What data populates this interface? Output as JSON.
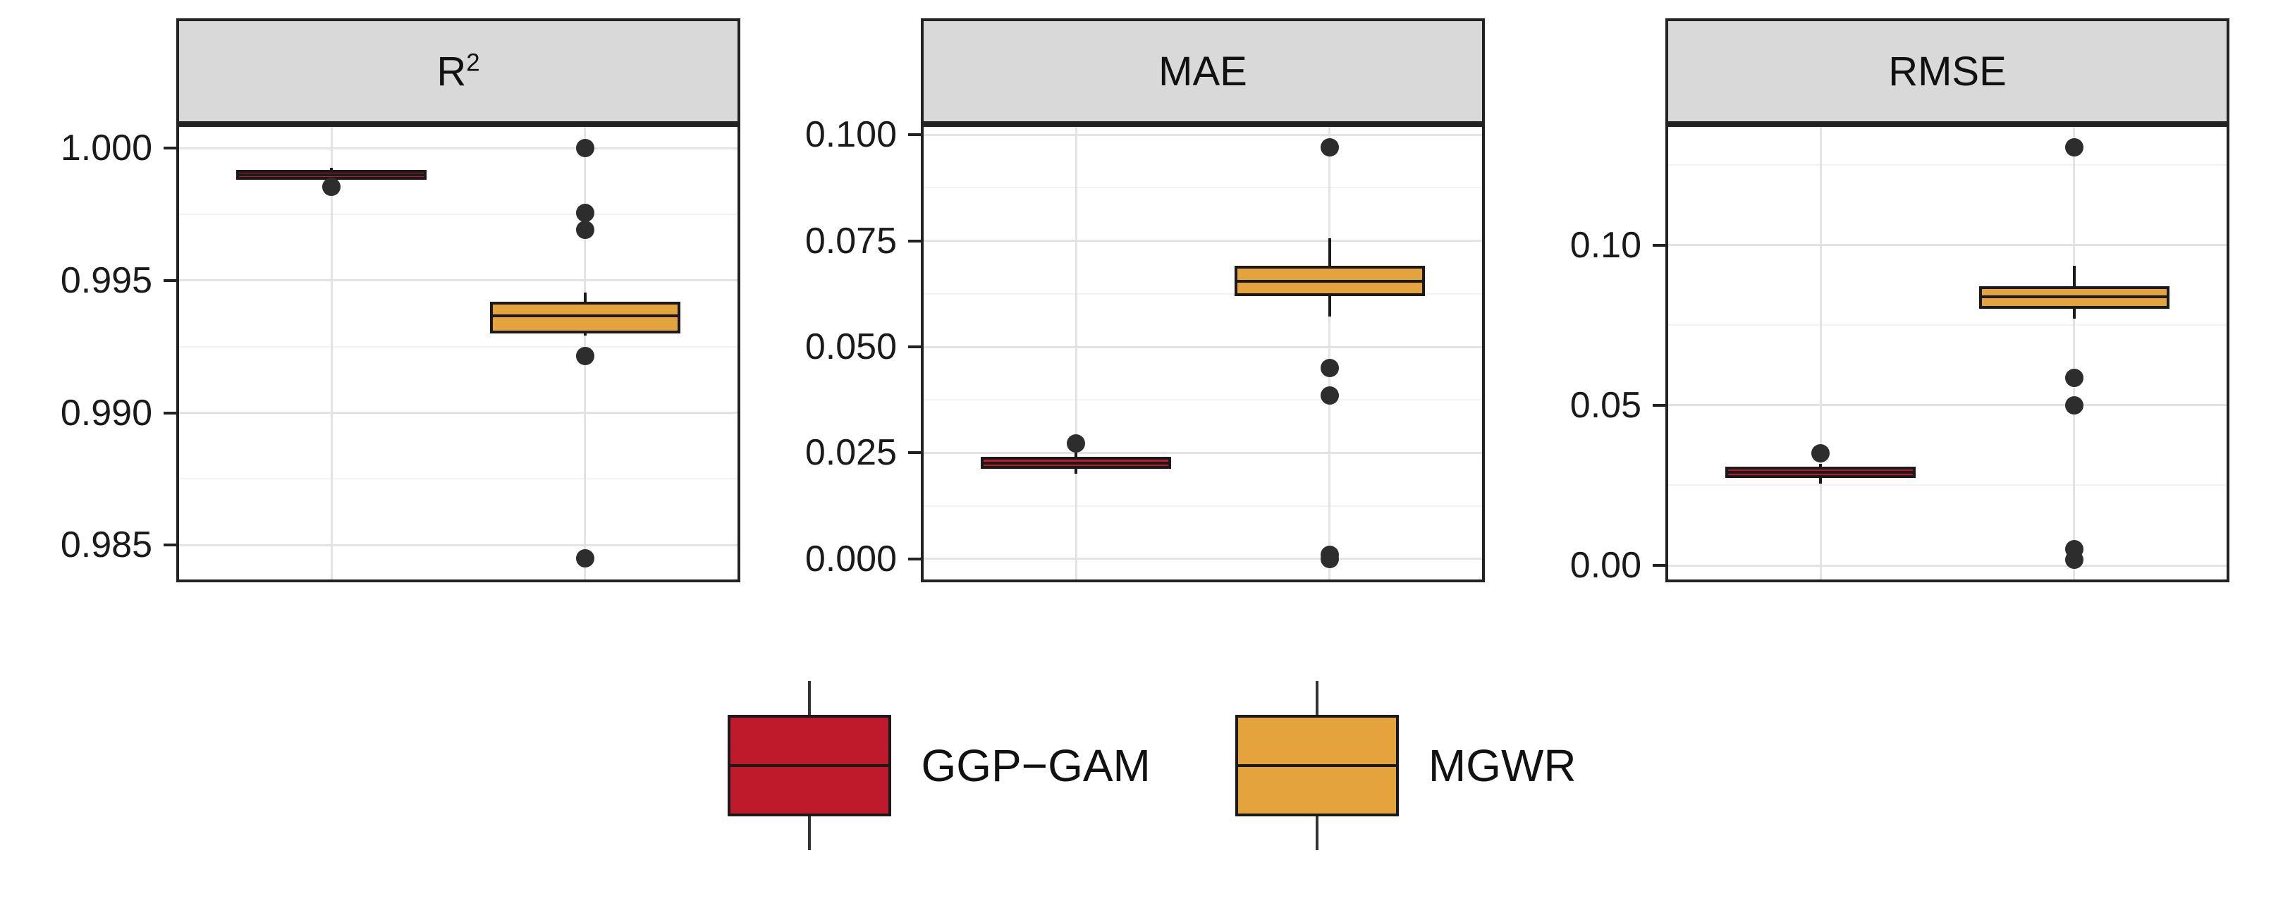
{
  "legend": {
    "position": "bottom",
    "items": [
      {
        "label": "GGP−GAM",
        "color_key": "ggp_gam"
      },
      {
        "label": "MGWR",
        "color_key": "mgwr"
      }
    ]
  },
  "colors": {
    "ggp_gam": "#bf1a2b",
    "mgwr": "#e4a33c",
    "stroke": "#1a1a1a",
    "outlier_point": "#2d2d2d",
    "strip_background": "#d9d9d9",
    "panel_border": "#222222",
    "grid_major": "#e3e3e3",
    "grid_minor": "#f2f2f2"
  },
  "chart_data": {
    "type": "boxplot",
    "title": "",
    "xlabel": "",
    "ylabel": "",
    "legend_position": "bottom",
    "grid": "major and minor horizontal gridlines, vertical major gridlines at each category",
    "x_categories": [
      "GGP-GAM",
      "MGWR"
    ],
    "facets": [
      {
        "id": "r2",
        "title": "R",
        "title_sup": "2",
        "y_domain": [
          0.9837,
          1.0008
        ],
        "ticks": [
          {
            "value": 1.0,
            "label": "1.000"
          },
          {
            "value": 0.995,
            "label": "0.995"
          },
          {
            "value": 0.99,
            "label": "0.990"
          },
          {
            "value": 0.985,
            "label": "0.985"
          }
        ],
        "minor_ticks": [
          0.9975,
          0.9925,
          0.9875
        ],
        "boxes": [
          {
            "group": "GGP-GAM",
            "color_key": "ggp_gam",
            "x": 0.273,
            "whisker_low": 0.99872,
            "q1": 0.9988,
            "median": 0.999,
            "q3": 0.99918,
            "whisker_high": 0.99925,
            "outliers": [
              0.99855
            ]
          },
          {
            "group": "MGWR",
            "color_key": "mgwr",
            "x": 0.727,
            "whisker_low": 0.9929,
            "q1": 0.993,
            "median": 0.99365,
            "q3": 0.9942,
            "whisker_high": 0.99455,
            "outliers": [
              1.0,
              0.99755,
              0.9969,
              0.99215,
              0.9845
            ]
          }
        ]
      },
      {
        "id": "mae",
        "title": "MAE",
        "title_sup": "",
        "y_domain": [
          -0.00485,
          0.10185
        ],
        "ticks": [
          {
            "value": 0.1,
            "label": "0.100"
          },
          {
            "value": 0.075,
            "label": "0.075"
          },
          {
            "value": 0.05,
            "label": "0.050"
          },
          {
            "value": 0.025,
            "label": "0.025"
          },
          {
            "value": 0.0,
            "label": "0.000"
          }
        ],
        "minor_ticks": [
          0.0875,
          0.0625,
          0.0375,
          0.0125
        ],
        "boxes": [
          {
            "group": "GGP-GAM",
            "color_key": "ggp_gam",
            "x": 0.273,
            "whisker_low": 0.02,
            "q1": 0.0212,
            "median": 0.0226,
            "q3": 0.024,
            "whisker_high": 0.025,
            "outliers": [
              0.0272
            ]
          },
          {
            "group": "MGWR",
            "color_key": "mgwr",
            "x": 0.727,
            "whisker_low": 0.0572,
            "q1": 0.062,
            "median": 0.0655,
            "q3": 0.0692,
            "whisker_high": 0.0756,
            "outliers": [
              0.097,
              0.045,
              0.0385,
              0.001,
              0.0
            ]
          }
        ]
      },
      {
        "id": "rmse",
        "title": "RMSE",
        "title_sup": "",
        "y_domain": [
          -0.0044,
          0.1369
        ],
        "ticks": [
          {
            "value": 0.1,
            "label": "0.10"
          },
          {
            "value": 0.05,
            "label": "0.05"
          },
          {
            "value": 0.0,
            "label": "0.00"
          }
        ],
        "minor_ticks": [
          0.125,
          0.075,
          0.025
        ],
        "boxes": [
          {
            "group": "GGP-GAM",
            "color_key": "ggp_gam",
            "x": 0.273,
            "whisker_low": 0.0255,
            "q1": 0.0272,
            "median": 0.029,
            "q3": 0.0309,
            "whisker_high": 0.0318,
            "outliers": [
              0.035
            ]
          },
          {
            "group": "MGWR",
            "color_key": "mgwr",
            "x": 0.727,
            "whisker_low": 0.077,
            "q1": 0.08,
            "median": 0.0838,
            "q3": 0.0872,
            "whisker_high": 0.0936,
            "outliers": [
              0.1305,
              0.0585,
              0.05,
              0.005,
              0.0018
            ]
          }
        ]
      }
    ]
  }
}
